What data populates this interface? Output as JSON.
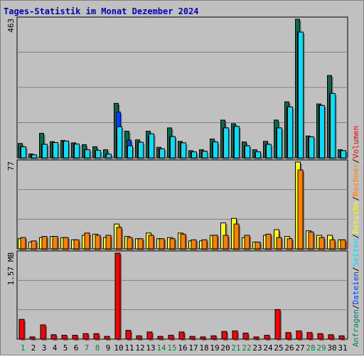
{
  "chart_data": {
    "type": "bar",
    "title": "Tages-Statistik im Monat Dezember 2024",
    "categories": [
      "1",
      "2",
      "3",
      "4",
      "5",
      "6",
      "7",
      "8",
      "9",
      "10",
      "11",
      "12",
      "13",
      "14",
      "15",
      "16",
      "17",
      "18",
      "19",
      "20",
      "21",
      "22",
      "23",
      "24",
      "25",
      "26",
      "27",
      "28",
      "29",
      "30",
      "31"
    ],
    "weekend_days": [
      "1",
      "7",
      "8",
      "14",
      "15",
      "21",
      "22",
      "28",
      "29"
    ],
    "grid": true,
    "panels": [
      {
        "id": "requests",
        "ylabel_max": "463",
        "ymax": 463,
        "series": [
          {
            "name": "Anfragen",
            "color": "#008060",
            "values": [
              48,
              13,
              82,
              54,
              58,
              50,
              44,
              37,
              27,
              182,
              89,
              60,
              89,
              35,
              100,
              55,
              24,
              27,
              63,
              126,
              114,
              53,
              27,
              55,
              126,
              187,
              463,
              73,
              180,
              275,
              27
            ]
          },
          {
            "name": "Dateien",
            "color": "#0040ff",
            "values": [
              37,
              10,
              45,
              51,
              56,
              46,
              27,
              25,
              12,
              153,
              59,
              52,
              73,
              30,
              71,
              50,
              20,
              22,
              53,
              100,
              105,
              40,
              20,
              45,
              100,
              170,
              420,
              70,
              175,
              215,
              24
            ]
          },
          {
            "name": "Seiten",
            "color": "#00e0ff",
            "values": [
              37,
              10,
              45,
              51,
              56,
              46,
              27,
              25,
              12,
              104,
              40,
              52,
              80,
              30,
              71,
              50,
              20,
              22,
              53,
              100,
              105,
              40,
              20,
              45,
              100,
              170,
              420,
              70,
              175,
              215,
              24
            ]
          }
        ]
      },
      {
        "id": "visits",
        "ylabel_max": "77",
        "ymax": 77,
        "series": [
          {
            "name": "Besuche",
            "color": "#ffff00",
            "values": [
              9,
              6,
              10,
              11,
              10,
              8,
              12,
              13,
              10,
              22,
              11,
              9,
              14,
              9,
              10,
              14,
              7,
              7,
              12,
              23,
              27,
              10,
              6,
              12,
              17,
              11,
              77,
              16,
              12,
              12,
              8
            ]
          },
          {
            "name": "Rechner",
            "color": "#ff8000",
            "values": [
              10,
              7,
              11,
              11,
              10,
              8,
              14,
              12,
              12,
              19,
              10,
              9,
              12,
              9,
              9,
              13,
              8,
              8,
              12,
              12,
              22,
              12,
              6,
              13,
              10,
              9,
              70,
              15,
              10,
              8,
              8
            ]
          }
        ]
      },
      {
        "id": "volume",
        "ylabel_max": "1.57 MB",
        "ymax": 1.57,
        "series": [
          {
            "name": "Volumen",
            "color": "#ff0000",
            "values": [
              0.36,
              0.04,
              0.26,
              0.08,
              0.07,
              0.07,
              0.1,
              0.1,
              0.05,
              1.57,
              0.16,
              0.06,
              0.13,
              0.05,
              0.07,
              0.13,
              0.05,
              0.04,
              0.06,
              0.14,
              0.15,
              0.11,
              0.04,
              0.07,
              0.54,
              0.12,
              0.15,
              0.12,
              0.1,
              0.08,
              0.06
            ]
          }
        ]
      }
    ],
    "legend_right": [
      {
        "text": "Anfragen",
        "color": "#008060"
      },
      {
        "text": "/",
        "color": "#000000"
      },
      {
        "text": "Dateien",
        "color": "#0040ff"
      },
      {
        "text": "/",
        "color": "#000000"
      },
      {
        "text": "Seiten",
        "color": "#00e0ff"
      },
      {
        "text": "/",
        "color": "#000000"
      },
      {
        "text": "Besuche",
        "color": "#ffff00"
      },
      {
        "text": "/",
        "color": "#000000"
      },
      {
        "text": "Rechner",
        "color": "#ff8000"
      },
      {
        "text": "/",
        "color": "#000000"
      },
      {
        "text": "Volumen",
        "color": "#ff0000"
      }
    ]
  }
}
